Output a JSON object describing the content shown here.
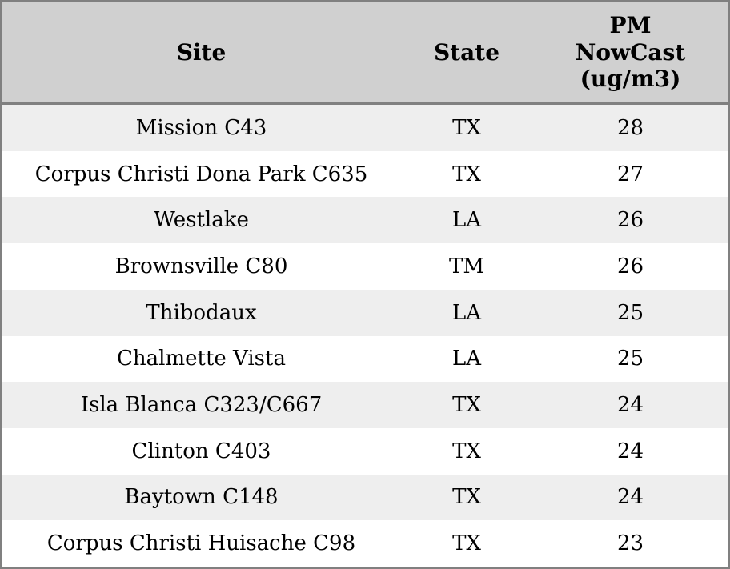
{
  "chart_data": {
    "type": "table",
    "columns": [
      {
        "key": "site",
        "label": "Site"
      },
      {
        "key": "state",
        "label": "State"
      },
      {
        "key": "pm",
        "label": "PM NowCast (ug/m3)"
      }
    ],
    "rows": [
      {
        "site": "Mission C43",
        "state": "TX",
        "pm": "28"
      },
      {
        "site": "Corpus Christi Dona Park C635",
        "state": "TX",
        "pm": "27"
      },
      {
        "site": "Westlake",
        "state": "LA",
        "pm": "26"
      },
      {
        "site": "Brownsville C80",
        "state": "TM",
        "pm": "26"
      },
      {
        "site": "Thibodaux",
        "state": "LA",
        "pm": "25"
      },
      {
        "site": "Chalmette Vista",
        "state": "LA",
        "pm": "25"
      },
      {
        "site": "Isla Blanca C323/C667",
        "state": "TX",
        "pm": "24"
      },
      {
        "site": "Clinton C403",
        "state": "TX",
        "pm": "24"
      },
      {
        "site": "Baytown C148",
        "state": "TX",
        "pm": "24"
      },
      {
        "site": "Corpus Christi Huisache C98",
        "state": "TX",
        "pm": "23"
      }
    ],
    "layout": {
      "striped": true,
      "text_align": "center",
      "header_position": "top"
    }
  },
  "colors": {
    "header_bg": "#d0d0d0",
    "row_stripe": "#eeeeee",
    "row_plain": "#ffffff",
    "border": "#808080",
    "text": "#000000"
  }
}
